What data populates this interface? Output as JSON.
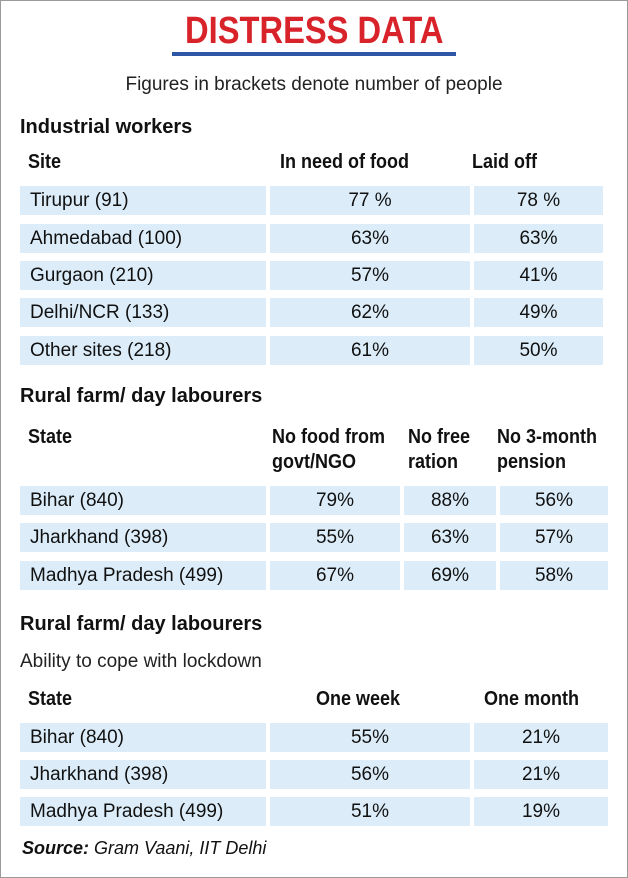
{
  "title": "DISTRESS DATA",
  "subtitle": "Figures in brackets denote number of people",
  "industrial": {
    "heading": "Industrial workers",
    "headers": [
      "Site",
      "In need of food",
      "Laid off"
    ],
    "rows": [
      [
        "Tirupur  (91)",
        "77 %",
        "78 %"
      ],
      [
        "Ahmedabad (100)",
        "63%",
        "63%"
      ],
      [
        "Gurgaon (210)",
        "57%",
        "41%"
      ],
      [
        "Delhi/NCR (133)",
        "62%",
        "49%"
      ],
      [
        "Other sites (218)",
        "61%",
        "50%"
      ]
    ]
  },
  "rural1": {
    "heading": "Rural farm/ day labourers",
    "headers": {
      "state": "State",
      "col1_line1": "No food from",
      "col1_line2": "govt/NGO",
      "col2_line1": "No free",
      "col2_line2": "ration",
      "col3_line1": "No 3-month",
      "col3_line2": "pension"
    },
    "rows": [
      [
        "Bihar (840)",
        "79%",
        "88%",
        "56%"
      ],
      [
        "Jharkhand (398)",
        "55%",
        "63%",
        "57%"
      ],
      [
        "Madhya Pradesh (499)",
        "67%",
        "69%",
        "58%"
      ]
    ]
  },
  "rural2": {
    "heading": "Rural farm/ day labourers",
    "note": "Ability to cope with lockdown",
    "headers": [
      "State",
      "One week",
      "One month"
    ],
    "rows": [
      [
        "Bihar (840)",
        "55%",
        "21%"
      ],
      [
        "Jharkhand (398)",
        "56%",
        "21%"
      ],
      [
        "Madhya Pradesh (499)",
        "51%",
        "19%"
      ]
    ]
  },
  "source": {
    "label": "Source:",
    "text": " Gram Vaani, IIT Delhi"
  }
}
